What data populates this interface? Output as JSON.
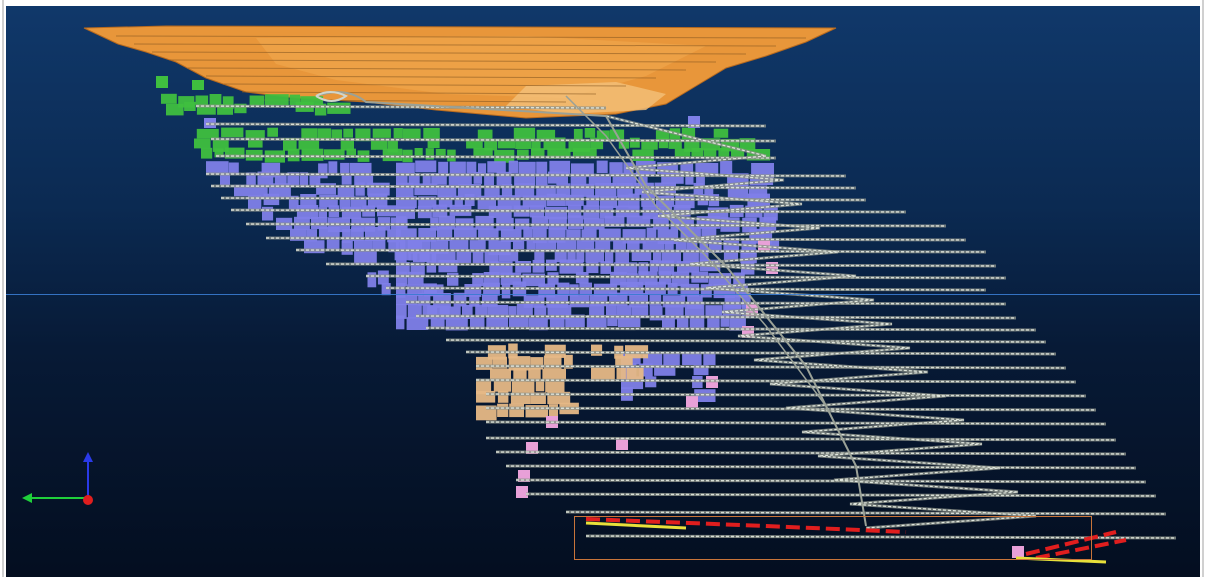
{
  "viewport": {
    "view": "3d-section-view",
    "background_top": "#10386a",
    "background_bottom": "#040e20"
  },
  "colors": {
    "pit": "#e8963a",
    "upper_stopes": "#3fbf3f",
    "main_stopes": "#7f80e8",
    "lower_stopes": "#e6b886",
    "pink_stopes": "#e8a0d8",
    "development": "#c9cfc6",
    "highlight": "#e01e1e",
    "highlight_secondary": "#e8e03a",
    "horizon_line": "#3a7bd0",
    "selection_box": "#c8743a"
  },
  "axes": {
    "x_axis_color": "#1fcf3a",
    "z_axis_color": "#2a3ae8",
    "origin_color": "#e01e1e"
  }
}
